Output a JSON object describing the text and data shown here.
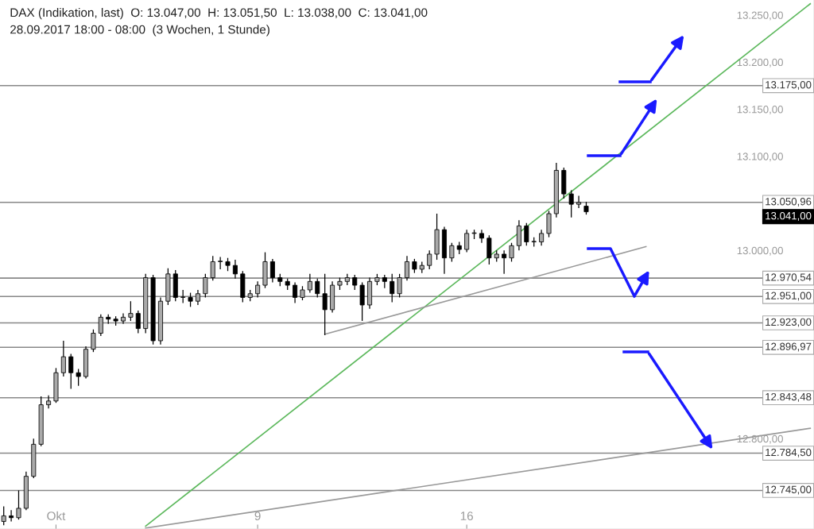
{
  "chart_data": {
    "type": "candlestick",
    "title": "DAX (Indikation, last)  O: 13.047,00  H: 13.051,50  L: 13.038,00  C: 13.041,00",
    "subtitle": "28.09.2017 18:00 - 08:00  (3 Wochen, 1 Stunde)",
    "categories": [
      null,
      null,
      null,
      null,
      null,
      null,
      null,
      "Okt",
      null,
      null,
      null,
      null,
      null,
      null,
      null,
      null,
      null,
      null,
      null,
      null,
      null,
      null,
      null,
      null,
      null,
      null,
      null,
      null,
      null,
      null,
      null,
      null,
      null,
      null,
      "9",
      null,
      null,
      null,
      null,
      null,
      null,
      null,
      null,
      null,
      null,
      null,
      null,
      null,
      null,
      null,
      null,
      null,
      null,
      null,
      null,
      null,
      null,
      null,
      null,
      null,
      null,
      null,
      "16",
      null,
      null,
      null,
      null,
      null,
      null,
      null,
      null,
      null,
      null,
      null,
      null,
      null,
      null,
      null,
      null,
      null,
      null,
      null,
      null,
      null,
      null,
      null,
      null,
      null,
      null,
      null,
      null,
      null,
      null,
      null,
      null,
      null,
      null,
      null,
      null,
      null,
      null,
      null,
      null,
      null,
      null,
      null,
      null,
      null,
      null
    ],
    "ohlc": [
      [
        12712,
        12728,
        12708,
        12718
      ],
      [
        12718,
        12724,
        12712,
        12716
      ],
      [
        12716,
        12745,
        12714,
        12726
      ],
      [
        12726,
        12765,
        12724,
        12760
      ],
      [
        12760,
        12800,
        12758,
        12794
      ],
      [
        12794,
        12845,
        12792,
        12836
      ],
      [
        12836,
        12846,
        12832,
        12840
      ],
      [
        12840,
        12875,
        12838,
        12870
      ],
      [
        12870,
        12904,
        12866,
        12887
      ],
      [
        12887,
        12890,
        12853,
        12870
      ],
      [
        12870,
        12874,
        12856,
        12866
      ],
      [
        12866,
        12898,
        12864,
        12895
      ],
      [
        12895,
        12916,
        12892,
        12912
      ],
      [
        12912,
        12932,
        12909,
        12929
      ],
      [
        12929,
        12932,
        12922,
        12927
      ],
      [
        12927,
        12930,
        12920,
        12925
      ],
      [
        12925,
        12933,
        12922,
        12929
      ],
      [
        12929,
        12946,
        12925,
        12933
      ],
      [
        12933,
        12936,
        12912,
        12917
      ],
      [
        12917,
        12975,
        12912,
        12971
      ],
      [
        12971,
        12974,
        12900,
        12904
      ],
      [
        12904,
        12950,
        12900,
        12946
      ],
      [
        12946,
        12981,
        12942,
        12975
      ],
      [
        12975,
        12979,
        12946,
        12950
      ],
      [
        12950,
        12958,
        12944,
        12950
      ],
      [
        12950,
        12955,
        12940,
        12946
      ],
      [
        12946,
        12958,
        12942,
        12954
      ],
      [
        12954,
        12975,
        12950,
        12971
      ],
      [
        12971,
        12994,
        12968,
        12988
      ],
      [
        12988,
        12993,
        12980,
        12988
      ],
      [
        12988,
        12992,
        12978,
        12984
      ],
      [
        12984,
        12990,
        12970,
        12975
      ],
      [
        12975,
        12978,
        12945,
        12950
      ],
      [
        12950,
        12958,
        12946,
        12954
      ],
      [
        12954,
        12967,
        12950,
        12963
      ],
      [
        12963,
        12998,
        12960,
        12988
      ],
      [
        12988,
        12991,
        12966,
        12971
      ],
      [
        12971,
        12975,
        12962,
        12967
      ],
      [
        12967,
        12970,
        12958,
        12963
      ],
      [
        12963,
        12966,
        12944,
        12950
      ],
      [
        12950,
        12962,
        12947,
        12958
      ],
      [
        12958,
        12975,
        12955,
        12967
      ],
      [
        12967,
        12970,
        12950,
        12954
      ],
      [
        12954,
        12975,
        12910,
        12937
      ],
      [
        12937,
        12967,
        12934,
        12963
      ],
      [
        12963,
        12971,
        12958,
        12967
      ],
      [
        12967,
        12975,
        12963,
        12971
      ],
      [
        12971,
        12974,
        12958,
        12963
      ],
      [
        12963,
        12966,
        12925,
        12942
      ],
      [
        12942,
        12971,
        12938,
        12967
      ],
      [
        12967,
        12975,
        12963,
        12971
      ],
      [
        12971,
        12974,
        12960,
        12967
      ],
      [
        12967,
        12975,
        12945,
        12954
      ],
      [
        12954,
        12975,
        12950,
        12971
      ],
      [
        12971,
        12994,
        12968,
        12988
      ],
      [
        12988,
        12991,
        12976,
        12980
      ],
      [
        12980,
        12988,
        12976,
        12984
      ],
      [
        12984,
        13000,
        12980,
        12996
      ],
      [
        12996,
        13039,
        12990,
        13022
      ],
      [
        13022,
        13025,
        12975,
        12992
      ],
      [
        12992,
        13008,
        12988,
        13005
      ],
      [
        13005,
        13009,
        12996,
        13001
      ],
      [
        13001,
        13022,
        12998,
        13018
      ],
      [
        13018,
        13022,
        13012,
        13018
      ],
      [
        13018,
        13022,
        13008,
        13013
      ],
      [
        13013,
        13016,
        12985,
        12992
      ],
      [
        12992,
        13000,
        12988,
        12996
      ],
      [
        12996,
        13000,
        12975,
        12992
      ],
      [
        12992,
        13008,
        12988,
        13005
      ],
      [
        13005,
        13032,
        13000,
        13026
      ],
      [
        13026,
        13029,
        13005,
        13009
      ],
      [
        13009,
        13014,
        13004,
        13009
      ],
      [
        13009,
        13022,
        13005,
        13018
      ],
      [
        13018,
        13042,
        13014,
        13039
      ],
      [
        13039,
        13093,
        13035,
        13085
      ],
      [
        13085,
        13088,
        13055,
        13060
      ],
      [
        13060,
        13064,
        13035,
        13049
      ],
      [
        13049,
        13058,
        13045,
        13051
      ],
      [
        13047,
        13051.5,
        13038,
        13041
      ],
      null,
      null,
      null,
      null,
      null,
      null,
      null,
      null,
      null,
      null,
      null,
      null,
      null,
      null,
      null,
      null,
      null,
      null,
      null,
      null,
      null,
      null,
      null,
      null,
      null,
      null,
      null,
      null,
      null,
      null
    ],
    "series": [
      {
        "type": "line",
        "color": "#5cb85c",
        "values": [
          null,
          null,
          null,
          null,
          null,
          null,
          null,
          null,
          null,
          null,
          null,
          null,
          null,
          null,
          null,
          null,
          null,
          null,
          null,
          12707,
          null,
          null,
          null,
          null,
          null,
          null,
          null,
          null,
          null,
          null,
          null,
          null,
          null,
          null,
          null,
          null,
          null,
          null,
          null,
          null,
          null,
          null,
          null,
          null,
          null,
          null,
          null,
          null,
          null,
          null,
          null,
          null,
          null,
          null,
          null,
          null,
          null,
          null,
          null,
          null,
          null,
          null,
          null,
          null,
          null,
          null,
          null,
          null,
          null,
          null,
          null,
          null,
          null,
          null,
          null,
          null,
          null,
          null,
          null,
          null,
          null,
          null,
          null,
          null,
          null,
          null,
          null,
          null,
          null,
          null,
          null,
          null,
          null,
          null,
          null,
          null,
          null,
          null,
          null,
          null,
          null,
          null,
          null,
          null,
          null,
          null,
          null,
          null,
          13262
        ]
      },
      {
        "type": "line",
        "color": "#999999",
        "values": [
          null,
          null,
          null,
          null,
          null,
          null,
          null,
          null,
          null,
          null,
          null,
          null,
          null,
          null,
          null,
          null,
          null,
          null,
          null,
          null,
          null,
          null,
          null,
          null,
          null,
          null,
          null,
          null,
          null,
          null,
          null,
          null,
          null,
          null,
          null,
          null,
          null,
          null,
          null,
          null,
          null,
          null,
          null,
          12911,
          null,
          null,
          null,
          null,
          null,
          null,
          null,
          null,
          null,
          null,
          null,
          null,
          null,
          null,
          null,
          null,
          null,
          null,
          null,
          null,
          null,
          null,
          null,
          null,
          null,
          null,
          null,
          null,
          null,
          null,
          null,
          null,
          null,
          null,
          null,
          null,
          null,
          null,
          null,
          null,
          null,
          null,
          13004,
          null,
          null,
          null,
          null,
          null,
          null,
          null,
          null,
          null,
          null,
          null,
          null,
          null,
          null,
          null,
          null,
          null,
          null,
          null,
          null,
          null,
          null
        ]
      },
      {
        "type": "line",
        "color": "#999999",
        "values": [
          null,
          null,
          null,
          null,
          null,
          null,
          null,
          null,
          null,
          null,
          null,
          null,
          null,
          null,
          null,
          null,
          null,
          null,
          null,
          12705,
          null,
          null,
          null,
          null,
          null,
          null,
          null,
          null,
          null,
          null,
          null,
          null,
          null,
          null,
          null,
          null,
          null,
          null,
          null,
          null,
          null,
          null,
          null,
          null,
          null,
          null,
          null,
          null,
          null,
          null,
          null,
          null,
          null,
          null,
          null,
          null,
          null,
          null,
          null,
          null,
          null,
          null,
          null,
          null,
          null,
          null,
          null,
          null,
          null,
          null,
          null,
          null,
          null,
          null,
          null,
          null,
          null,
          null,
          null,
          null,
          null,
          null,
          null,
          null,
          null,
          null,
          null,
          null,
          null,
          null,
          null,
          null,
          null,
          null,
          null,
          null,
          null,
          null,
          null,
          null,
          null,
          null,
          null,
          null,
          null,
          null,
          null,
          null,
          12811
        ]
      }
    ],
    "ref_lines": [
      {
        "axis": "y",
        "value": 13175,
        "label": "13.175,00",
        "color": "#888888"
      },
      {
        "axis": "y",
        "value": 13050.96,
        "label": "13.050,96",
        "color": "#888888"
      },
      {
        "axis": "y",
        "value": 12970.54,
        "label": "12.970,54",
        "color": "#888888"
      },
      {
        "axis": "y",
        "value": 12951,
        "label": "12.951,00",
        "color": "#888888"
      },
      {
        "axis": "y",
        "value": 12923,
        "label": "12.923,00",
        "color": "#888888"
      },
      {
        "axis": "y",
        "value": 12896.97,
        "label": "12.896,97",
        "color": "#888888"
      },
      {
        "axis": "y",
        "value": 12843.48,
        "label": "12.843,48",
        "color": "#888888"
      },
      {
        "axis": "y",
        "value": 12784.5,
        "label": "12.784,50",
        "color": "#888888"
      },
      {
        "axis": "y",
        "value": 12745,
        "label": "12.745,00",
        "color": "#888888"
      }
    ],
    "annotations": [
      "13.041,00"
    ],
    "ylim": [
      12704,
      13266
    ],
    "yticks": [
      {
        "value": 12800,
        "label": "12.800,00"
      },
      {
        "value": 13000,
        "label": "13.000,00"
      },
      {
        "value": 13100,
        "label": "13.100,00"
      },
      {
        "value": 13150,
        "label": "13.150,00"
      },
      {
        "value": 13200,
        "label": "13.200,00"
      },
      {
        "value": 13250,
        "label": "13.250,00"
      }
    ]
  }
}
